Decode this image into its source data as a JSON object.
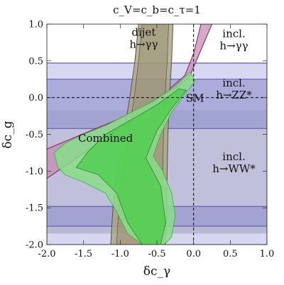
{
  "chart_data": {
    "type": "area",
    "title": "c_V=c_b=c_τ=1",
    "xlabel": "δc_γ",
    "ylabel": "δc_g",
    "xlim": [
      -2.0,
      1.0
    ],
    "ylim": [
      -2.0,
      1.0
    ],
    "x_ticks": [
      "-2.0",
      "-1.5",
      "-1.0",
      "-0.5",
      "0.0",
      "0.5",
      "1.0"
    ],
    "y_ticks": [
      "-2.0",
      "-1.5",
      "-1.0",
      "-0.5",
      "0.0",
      "0.5",
      "1.0"
    ],
    "grid": false,
    "reference_lines": {
      "x": 0.0,
      "y": 0.0,
      "style": "dashed"
    },
    "sm_point": {
      "label": "SM",
      "x": 0.0,
      "y": 0.0
    },
    "regions": [
      {
        "id": "hww",
        "label": [
          "incl.",
          "h→WW*"
        ],
        "label_at": [
          0.55,
          -0.85
        ],
        "color_inner": "#cccccc",
        "color_outer": "#bdbdbd",
        "y_bands_outer": [
          [
            -1.85,
            -0.17
          ]
        ],
        "y_bands_inner": [
          [
            -1.5,
            -0.4
          ]
        ]
      },
      {
        "id": "hzz",
        "label": [
          "incl.",
          "h→ZZ*"
        ],
        "label_at": [
          0.55,
          0.15
        ],
        "color_inner": "#9a9ad2",
        "color_outer": "#b6b6e6",
        "border": "#3a3a9a",
        "y_bands_outer": [
          [
            -2.0,
            0.47
          ]
        ],
        "y_bands_inner": [
          [
            -1.75,
            -1.48
          ],
          [
            -0.42,
            0.25
          ]
        ]
      },
      {
        "id": "hgg_dijet",
        "label": [
          "dijet",
          "h→γγ"
        ],
        "label_at": [
          -0.68,
          0.84
        ],
        "color": "#a8a288",
        "border": "#5c5530",
        "outer_left": [
          [
            -1.13,
            -2.0
          ],
          [
            -1.1,
            -1.5
          ],
          [
            -1.04,
            -1.0
          ],
          [
            -0.95,
            -0.5
          ],
          [
            -0.87,
            0.0
          ],
          [
            -0.8,
            0.5
          ],
          [
            -0.75,
            1.0
          ]
        ],
        "outer_right": [
          [
            -0.38,
            -2.0
          ],
          [
            -0.37,
            -1.5
          ],
          [
            -0.36,
            -1.0
          ],
          [
            -0.35,
            -0.5
          ],
          [
            -0.33,
            0.0
          ],
          [
            -0.3,
            0.5
          ],
          [
            -0.28,
            1.0
          ]
        ],
        "inner_left": [
          [
            -1.05,
            -2.0
          ],
          [
            -1.02,
            -1.5
          ],
          [
            -0.97,
            -1.0
          ],
          [
            -0.89,
            -0.5
          ],
          [
            -0.81,
            0.0
          ],
          [
            -0.75,
            0.5
          ],
          [
            -0.7,
            1.0
          ]
        ],
        "inner_right": [
          [
            -0.44,
            -2.0
          ],
          [
            -0.43,
            -1.5
          ],
          [
            -0.42,
            -1.0
          ],
          [
            -0.41,
            -0.5
          ],
          [
            -0.39,
            0.0
          ],
          [
            -0.36,
            0.5
          ],
          [
            -0.34,
            1.0
          ]
        ]
      },
      {
        "id": "hgg_incl",
        "label": [
          "incl.",
          "h→γγ"
        ],
        "label_at": [
          0.55,
          0.82
        ],
        "color": "#c48eb4",
        "border": "#8a2a6a",
        "band_left": [
          [
            0.1,
            1.0
          ],
          [
            0.0,
            0.6
          ],
          [
            -0.12,
            0.3
          ],
          [
            -0.35,
            0.1
          ],
          [
            -0.8,
            -0.2
          ],
          [
            -1.4,
            -0.45
          ],
          [
            -2.0,
            -0.7
          ]
        ],
        "band_right": [
          [
            0.25,
            1.0
          ],
          [
            0.08,
            0.6
          ],
          [
            -0.05,
            0.3
          ],
          [
            -0.2,
            0.15
          ],
          [
            -0.6,
            -0.1
          ],
          [
            -1.2,
            -0.55
          ],
          [
            -2.0,
            -1.1
          ]
        ]
      },
      {
        "id": "combined",
        "label": [
          "Combined"
        ],
        "label_at": [
          -1.2,
          -0.6
        ],
        "color_inner": "#44cc44",
        "color_outer": "#88dd88",
        "outer": [
          [
            -1.9,
            -0.75
          ],
          [
            -1.85,
            -0.95
          ],
          [
            -1.75,
            -1.05
          ],
          [
            -1.5,
            -1.15
          ],
          [
            -1.2,
            -1.3
          ],
          [
            -1.05,
            -1.55
          ],
          [
            -0.9,
            -1.85
          ],
          [
            -0.7,
            -2.0
          ],
          [
            -0.4,
            -2.0
          ],
          [
            -0.3,
            -1.9
          ],
          [
            -0.25,
            -1.6
          ],
          [
            -0.3,
            -1.3
          ],
          [
            -0.42,
            -1.0
          ],
          [
            -0.55,
            -0.8
          ],
          [
            -0.45,
            -0.5
          ],
          [
            -0.3,
            -0.2
          ],
          [
            -0.12,
            0.05
          ],
          [
            0.02,
            0.22
          ],
          [
            -0.05,
            0.35
          ],
          [
            -0.25,
            0.15
          ],
          [
            -0.55,
            -0.05
          ],
          [
            -0.85,
            -0.2
          ],
          [
            -1.2,
            -0.38
          ],
          [
            -1.5,
            -0.5
          ],
          [
            -1.75,
            -0.62
          ]
        ],
        "inner": [
          [
            -1.6,
            -0.95
          ],
          [
            -1.3,
            -1.05
          ],
          [
            -1.05,
            -1.3
          ],
          [
            -0.9,
            -1.7
          ],
          [
            -0.7,
            -2.0
          ],
          [
            -0.45,
            -2.0
          ],
          [
            -0.38,
            -1.7
          ],
          [
            -0.45,
            -1.2
          ],
          [
            -0.65,
            -0.82
          ],
          [
            -0.5,
            -0.45
          ],
          [
            -0.3,
            -0.15
          ],
          [
            -0.1,
            0.1
          ],
          [
            -0.2,
            0.12
          ],
          [
            -0.5,
            -0.1
          ],
          [
            -0.85,
            -0.3
          ],
          [
            -1.2,
            -0.5
          ],
          [
            -1.45,
            -0.75
          ]
        ]
      }
    ]
  }
}
